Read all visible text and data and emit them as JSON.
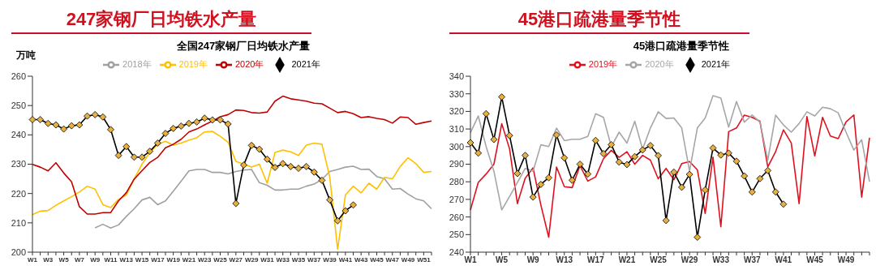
{
  "chart_data": [
    {
      "type": "line",
      "title": "247家钢厂日均铁水产量",
      "subtitle": "全国247家钢厂日均铁水产量",
      "ylabel": "万吨",
      "categories": [
        "W1",
        null,
        "W3",
        null,
        "W5",
        null,
        "W7",
        null,
        "W9",
        null,
        "W11",
        null,
        "W13",
        null,
        "W15",
        null,
        "W17",
        null,
        "W19",
        null,
        "W21",
        null,
        "W23",
        null,
        "W25",
        null,
        "W27",
        null,
        "W29",
        null,
        "W31",
        null,
        "W33",
        null,
        "W35",
        null,
        "W37",
        null,
        "W39",
        null,
        "W41",
        null,
        "W43",
        null,
        "W45",
        null,
        "W47",
        null,
        "W49",
        null,
        "W51",
        null
      ],
      "ylim": [
        200,
        260
      ],
      "yticks": [
        200,
        210,
        220,
        230,
        240,
        250,
        260
      ],
      "grid": false,
      "legend": "top",
      "marker": "none",
      "line_style": "solid",
      "series": [
        {
          "name": "2018年",
          "color": "#a0a0a0",
          "values": [
            null,
            null,
            null,
            null,
            null,
            null,
            null,
            null,
            208.3,
            209.5,
            208.2,
            209.3,
            212.2,
            214.8,
            217.8,
            218.7,
            216.2,
            217.5,
            220.8,
            224.2,
            227.7,
            228.2,
            228.2,
            227.2,
            227.2,
            226.7,
            227.5,
            228,
            228.2,
            223.7,
            222.8,
            221.2,
            221.2,
            221.5,
            221.5,
            222.5,
            223.2,
            224.8,
            227.5,
            228.2,
            229,
            229.3,
            228.2,
            228.3,
            225.8,
            225,
            221.5,
            221.7,
            219.8,
            218.2,
            217.5,
            214.8
          ]
        },
        {
          "name": "2019年",
          "color": "#ffc000",
          "values": [
            212.8,
            214,
            214.2,
            216,
            217.5,
            218.9,
            220.5,
            222.5,
            221.5,
            216.2,
            215.2,
            218,
            219.5,
            225,
            230,
            234,
            236.8,
            237.8,
            236.5,
            237.2,
            238.2,
            239,
            241,
            241.2,
            239.5,
            237.5,
            231,
            230,
            229,
            230,
            223.5,
            234,
            234.8,
            234.2,
            233,
            236.5,
            237.2,
            236.8,
            225.5,
            201,
            219.5,
            222.5,
            220.2,
            223.5,
            221.5,
            225.5,
            225,
            229.2,
            232.2,
            230.2,
            227.2,
            227.5
          ]
        },
        {
          "name": "2020年",
          "color": "#c00000",
          "values": [
            229.9,
            229,
            227.7,
            230.5,
            227,
            224,
            215.5,
            213,
            213,
            213.5,
            213.5,
            217.5,
            220.3,
            224.9,
            227.8,
            230.6,
            232.3,
            235.6,
            236.8,
            238.5,
            241,
            242,
            243.4,
            244.7,
            246.2,
            246.9,
            248.5,
            248.3,
            247.6,
            247.4,
            247.8,
            251.5,
            253.2,
            252.3,
            251.9,
            251.5,
            250.8,
            250.6,
            249.1,
            247.6,
            248,
            247.2,
            245.9,
            246.2,
            245.6,
            245.2,
            244,
            246.1,
            245.9,
            243.6,
            244.2,
            244.7
          ]
        },
        {
          "name": "2021年",
          "color": "#000000",
          "marker": "diamond",
          "values": [
            245.2,
            245.2,
            243.9,
            243.4,
            242,
            243.1,
            243.4,
            246.4,
            246.9,
            246.1,
            241.8,
            233,
            236,
            232.4,
            232.4,
            234.4,
            237.2,
            240.5,
            242.2,
            243,
            243.9,
            244.4,
            245.7,
            245.1,
            245.1,
            243.7,
            216.6,
            229.7,
            236.4,
            235.1,
            231.7,
            228.9,
            230.2,
            229.2,
            228.6,
            229.2,
            227.3,
            224.5,
            217.8,
            210.7,
            214.1,
            216.1,
            null,
            null,
            null,
            null,
            null,
            null,
            null,
            null,
            null,
            null
          ]
        }
      ]
    },
    {
      "type": "line",
      "title": "45港口疏港量季节性",
      "subtitle": "45港口疏港量季节性",
      "categories": [
        "W1",
        null,
        null,
        null,
        "W5",
        null,
        null,
        null,
        "W9",
        null,
        null,
        null,
        "W13",
        null,
        null,
        null,
        "W17",
        null,
        null,
        null,
        "W21",
        null,
        null,
        null,
        "W25",
        null,
        null,
        null,
        "W29",
        null,
        null,
        null,
        "W33",
        null,
        null,
        null,
        "W37",
        null,
        null,
        null,
        "W41",
        null,
        null,
        null,
        "W45",
        null,
        null,
        null,
        "W49",
        null,
        null,
        null
      ],
      "ylim": [
        240,
        340
      ],
      "yticks": [
        240,
        250,
        260,
        270,
        280,
        290,
        300,
        310,
        320,
        330,
        340
      ],
      "grid": false,
      "legend": "top",
      "marker": "none",
      "line_style": "solid",
      "series": [
        {
          "name": "2019年",
          "color": "#e0101e",
          "values": [
            264,
            279.6,
            284.4,
            290,
            313,
            298.7,
            267.6,
            282,
            287.9,
            266.8,
            248.5,
            288.4,
            277.2,
            276.7,
            289.2,
            280.4,
            282.8,
            293.1,
            297.9,
            293.9,
            297.1,
            290,
            295,
            292.3,
            281.7,
            287.6,
            281.2,
            290.3,
            291.5,
            286.8,
            262,
            294,
            254.4,
            308.5,
            310.6,
            317.9,
            316.6,
            314.4,
            288.4,
            297.1,
            309.5,
            302,
            267.6,
            317.1,
            294.7,
            316.6,
            306,
            304.5,
            314,
            318,
            271.3,
            305
          ]
        },
        {
          "name": "2020年",
          "color": "#a6a6a6",
          "values": [
            307.9,
            317.4,
            300,
            286,
            264,
            271.6,
            279.6,
            287.6,
            286,
            301,
            300,
            310.5,
            303.4,
            304.2,
            304.2,
            305.8,
            318.7,
            316.6,
            300,
            308.2,
            302,
            314.4,
            298.5,
            310.6,
            319.8,
            316,
            316.3,
            310.6,
            286,
            310.6,
            316.3,
            328.9,
            327.6,
            311.1,
            325.6,
            313.9,
            317.9,
            313.9,
            292.3,
            317.9,
            312.3,
            308.2,
            313.1,
            319.8,
            317.4,
            322.4,
            321.5,
            319.2,
            308.2,
            298,
            303.9,
            280
          ]
        },
        {
          "name": "2021年",
          "color": "#000000",
          "marker": "diamond",
          "values": [
            302.2,
            296.3,
            318.7,
            304,
            328.2,
            306.3,
            284.7,
            295,
            271.3,
            278.5,
            282.3,
            306.6,
            293.6,
            280.9,
            290,
            284.4,
            303.5,
            296,
            301.1,
            291.2,
            289.8,
            294.3,
            298.1,
            300.6,
            294.9,
            258,
            285.5,
            276.9,
            284.2,
            248.5,
            275.4,
            299.2,
            295.2,
            296.3,
            291.7,
            283.3,
            274.2,
            281.8,
            286.4,
            274.2,
            267.3,
            null,
            null,
            null,
            null,
            null,
            null,
            null,
            null,
            null,
            null,
            null
          ]
        }
      ]
    }
  ]
}
